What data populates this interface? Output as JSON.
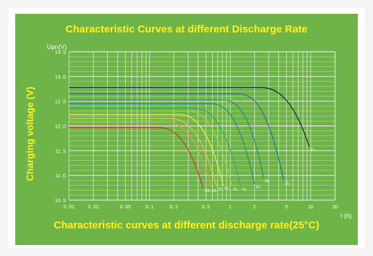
{
  "chart_data": {
    "type": "line",
    "title": "Characteristic Curves at different Discharge Rate",
    "subtitle": "Characteristic curves at different discharge rate(25°C)",
    "xlabel": "t (h)",
    "ylabel": "Charging voltage (V)",
    "y_unit_label": "Upn(V)",
    "x_scale": "log",
    "xlim": [
      0.01,
      20
    ],
    "ylim": [
      10.5,
      13.5
    ],
    "grid": true,
    "x_ticks": [
      {
        "value": 0.01,
        "label": "0. 01"
      },
      {
        "value": 0.02,
        "label": "0. 02"
      },
      {
        "value": 0.05,
        "label": "0. 05"
      },
      {
        "value": 0.1,
        "label": "0. 1"
      },
      {
        "value": 0.2,
        "label": "0. 2"
      },
      {
        "value": 0.5,
        "label": "0. 5"
      },
      {
        "value": 1,
        "label": "1"
      },
      {
        "value": 2,
        "label": "2"
      },
      {
        "value": 5,
        "label": "5"
      },
      {
        "value": 10,
        "label": "10"
      },
      {
        "value": 20,
        "label": "20"
      }
    ],
    "y_ticks": [
      {
        "value": 10.5,
        "label": "10. 5"
      },
      {
        "value": 11.0,
        "label": "11. 0"
      },
      {
        "value": 11.5,
        "label": "11. 5"
      },
      {
        "value": 12.0,
        "label": "12. 0"
      },
      {
        "value": 12.5,
        "label": "12. 5"
      },
      {
        "value": 13.0,
        "label": "13. 0"
      },
      {
        "value": 13.5,
        "label": "13. 5"
      }
    ],
    "series": [
      {
        "name": "10I₀",
        "color": "#d13a1c",
        "plateau": 11.97,
        "knee": 0.12,
        "end_t": 0.46,
        "end_v": 10.75
      },
      {
        "name": "8I₀",
        "color": "#e8a027",
        "plateau": 12.07,
        "knee": 0.15,
        "end_t": 0.58,
        "end_v": 10.75
      },
      {
        "name": "7I₀",
        "color": "#f1c234",
        "plateau": 12.15,
        "knee": 0.17,
        "end_t": 0.68,
        "end_v": 10.78
      },
      {
        "name": "6I₀",
        "color": "#f6ee2e",
        "plateau": 12.23,
        "knee": 0.22,
        "end_t": 0.82,
        "end_v": 10.8
      },
      {
        "name": "5I₀",
        "color": "#9fd23b",
        "plateau": 12.3,
        "knee": 0.28,
        "end_t": 1.05,
        "end_v": 10.78
      },
      {
        "name": "5I₀",
        "color": "#3fa66c",
        "plateau": 12.36,
        "knee": 0.33,
        "end_t": 1.35,
        "end_v": 10.78
      },
      {
        "name": "4I₀",
        "color": "#2e8f6e",
        "plateau": 12.45,
        "knee": 0.55,
        "end_t": 2.0,
        "end_v": 10.83
      },
      {
        "name": "3I₀",
        "color": "#2c8d8a",
        "plateau": 12.52,
        "knee": 0.8,
        "end_t": 2.6,
        "end_v": 10.95
      },
      {
        "name": "2I₀",
        "color": "#27719c",
        "plateau": 12.65,
        "knee": 1.2,
        "end_t": 4.6,
        "end_v": 10.9
      },
      {
        "name": "1I₀",
        "color": "#142844",
        "plateau": 12.78,
        "knee": 2.2,
        "end_t": 9.6,
        "end_v": 11.58
      }
    ],
    "label_positions_note": "labels drawn near curve ends"
  }
}
